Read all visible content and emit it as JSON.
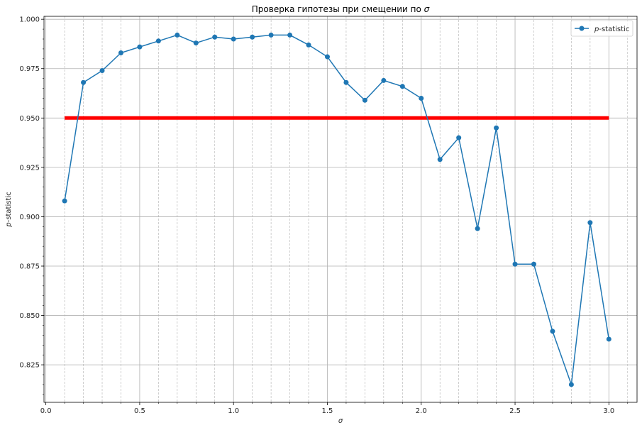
{
  "chart_data": {
    "type": "line",
    "title_text": "Проверка гипотезы при смещении по ",
    "title_symbol": "σ",
    "xlabel": "σ",
    "ylabel_italic": "p",
    "ylabel_rest": "-statistic",
    "xlim": [
      -0.01,
      3.15
    ],
    "ylim": [
      0.806,
      1.0015
    ],
    "x_ticks": [
      0.0,
      0.5,
      1.0,
      1.5,
      2.0,
      2.5,
      3.0
    ],
    "x_tick_labels": [
      "0.0",
      "0.5",
      "1.0",
      "1.5",
      "2.0",
      "2.5",
      "3.0"
    ],
    "x_minor_step": 0.1,
    "y_ticks": [
      0.825,
      0.85,
      0.875,
      0.9,
      0.925,
      0.95,
      0.975,
      1.0
    ],
    "y_tick_labels": [
      "0.825",
      "0.850",
      "0.875",
      "0.900",
      "0.925",
      "0.950",
      "0.975",
      "1.000"
    ],
    "y_minor_step": 0.005,
    "grid": true,
    "legend_position": "top-right",
    "series": [
      {
        "name_italic": "p",
        "name_rest": "-statistic",
        "color": "#1f77b4",
        "x": [
          0.1,
          0.2,
          0.3,
          0.4,
          0.5,
          0.6,
          0.7,
          0.8,
          0.9,
          1.0,
          1.1,
          1.2,
          1.3,
          1.4,
          1.5,
          1.6,
          1.7,
          1.8,
          1.9,
          2.0,
          2.1,
          2.2,
          2.3,
          2.4,
          2.5,
          2.6,
          2.7,
          2.8,
          2.9,
          3.0
        ],
        "y": [
          0.908,
          0.968,
          0.974,
          0.983,
          0.986,
          0.989,
          0.992,
          0.988,
          0.991,
          0.99,
          0.991,
          0.992,
          0.992,
          0.987,
          0.981,
          0.968,
          0.959,
          0.969,
          0.966,
          0.96,
          0.929,
          0.94,
          0.894,
          0.945,
          0.876,
          0.876,
          0.842,
          0.815,
          0.897,
          0.838
        ]
      }
    ],
    "threshold": {
      "y": 0.95,
      "x_start": 0.1,
      "x_end": 3.0,
      "color": "#ff0000"
    }
  }
}
